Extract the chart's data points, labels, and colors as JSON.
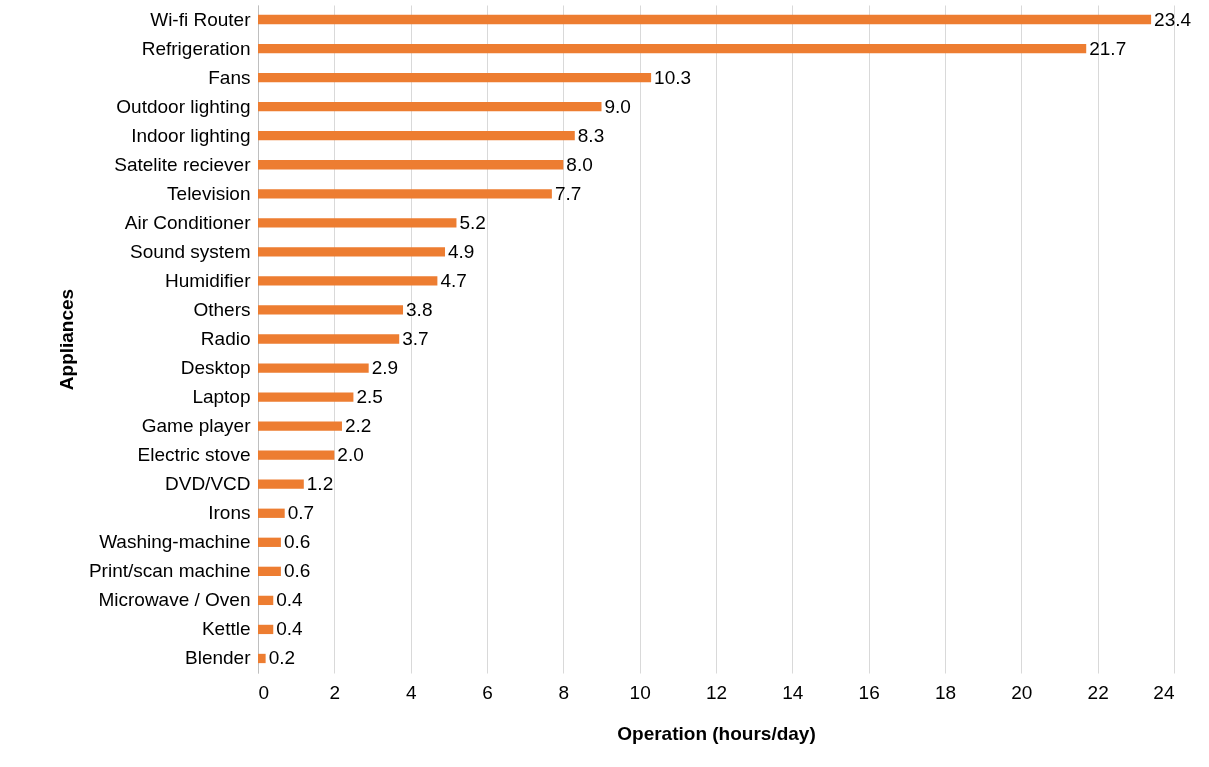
{
  "chart_data": {
    "type": "bar",
    "orientation": "horizontal",
    "xlabel": "Operation (hours/day)",
    "ylabel": "Appliances",
    "categories": [
      "Wi-fi Router",
      "Refrigeration",
      "Fans",
      "Outdoor lighting",
      "Indoor lighting",
      "Satelite reciever",
      "Television",
      "Air Conditioner",
      "Sound system",
      "Humidifier",
      "Others",
      "Radio",
      "Desktop",
      "Laptop",
      "Game player",
      "Electric stove",
      "DVD/VCD",
      "Irons",
      "Washing-machine",
      "Print/scan machine",
      "Microwave / Oven",
      "Kettle",
      "Blender"
    ],
    "values": [
      23.4,
      21.7,
      10.3,
      9.0,
      8.3,
      8.0,
      7.7,
      5.2,
      4.9,
      4.7,
      3.8,
      3.7,
      2.9,
      2.5,
      2.2,
      2.0,
      1.2,
      0.7,
      0.6,
      0.6,
      0.4,
      0.4,
      0.2
    ],
    "value_labels": [
      "23.4",
      "21.7",
      "10.3",
      "9.0",
      "8.3",
      "8.0",
      "7.7",
      "5.2",
      "4.9",
      "4.7",
      "3.8",
      "3.7",
      "2.9",
      "2.5",
      "2.2",
      "2.0",
      "1.2",
      "0.7",
      "0.6",
      "0.6",
      "0.4",
      "0.4",
      "0.2"
    ],
    "color": "#ed7d31",
    "xlim": [
      0,
      24
    ],
    "xticks": [
      0,
      2,
      4,
      6,
      8,
      10,
      12,
      14,
      16,
      18,
      20,
      22,
      24
    ],
    "grid": "x"
  }
}
